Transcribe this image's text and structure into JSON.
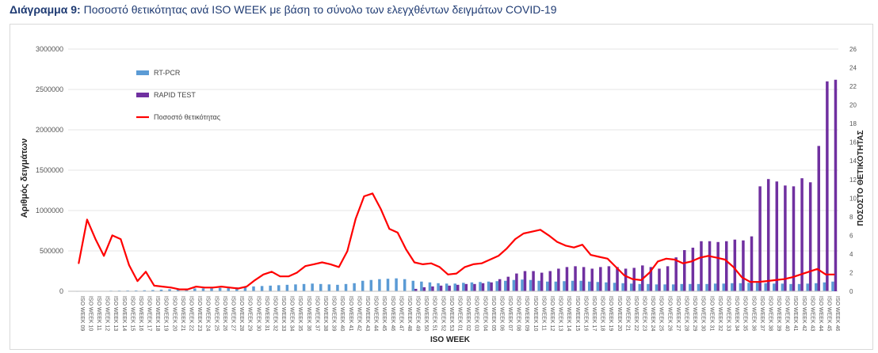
{
  "caption": {
    "label": "Διάγραμμα 9",
    "text": "Ποσοστό θετικότητας ανά ISO WEEK με βάση το σύνολο των ελεγχθέντων δειγμάτων COVID-19"
  },
  "chart_data": {
    "type": "bar",
    "xlabel": "ISO WEEK",
    "ylabel": "Αριθμός δειγμάτων",
    "y2label": "ΠΟΣΟΣΤΟ ΘΕΤΙΚΟΤΗΤΑΣ",
    "ylim": [
      0,
      3000000
    ],
    "y2lim": [
      0,
      26
    ],
    "yticks": [
      "0",
      "500000",
      "1000000",
      "1500000",
      "2000000",
      "2500000",
      "3000000"
    ],
    "y2ticks": [
      "0",
      "2",
      "4",
      "6",
      "8",
      "10",
      "12",
      "14",
      "16",
      "18",
      "20",
      "22",
      "24",
      "26"
    ],
    "legend_position": "top-left",
    "categories": [
      "ISO WEEK 09",
      "ISO WEEK 10",
      "ISO WEEK 11",
      "ISO WEEK 12",
      "ISO WEEK 13",
      "ISO WEEK 14",
      "ISO WEEK 15",
      "ISO WEEK 16",
      "ISO WEEK 17",
      "ISO WEEK 18",
      "ISO WEEK 19",
      "ISO WEEK 20",
      "ISO WEEK 21",
      "ISO WEEK 22",
      "ISO WEEK 23",
      "ISO WEEK 24",
      "ISO WEEK 25",
      "ISO WEEK 26",
      "ISO WEEK 27",
      "ISO WEEK 28",
      "ISO WEEK 29",
      "ISO WEEK 30",
      "ISO WEEK 31",
      "ISO WEEK 32",
      "ISO WEEK 33",
      "ISO WEEK 34",
      "ISO WEEK 35",
      "ISO WEEK 36",
      "ISO WEEK 37",
      "ISO WEEK 38",
      "ISO WEEK 39",
      "ISO WEEK 40",
      "ISO WEEK 41",
      "ISO WEEK 42",
      "ISO WEEK 43",
      "ISO WEEK 44",
      "ISO WEEK 45",
      "ISO WEEK 46",
      "ISO WEEK 47",
      "ISO WEEK 48",
      "ISO WEEK 49",
      "ISO WEEK 50",
      "ISO WEEK 51",
      "ISO WEEK 52",
      "ISO WEEK 53",
      "ISO WEEK 01",
      "ISO WEEK 02",
      "ISO WEEK 03",
      "ISO WEEK 04",
      "ISO WEEK 05",
      "ISO WEEK 06",
      "ISO WEEK 07",
      "ISO WEEK 08",
      "ISO WEEK 09",
      "ISO WEEK 10",
      "ISO WEEK 11",
      "ISO WEEK 12",
      "ISO WEEK 13",
      "ISO WEEK 14",
      "ISO WEEK 15",
      "ISO WEEK 16",
      "ISO WEEK 17",
      "ISO WEEK 18",
      "ISO WEEK 19",
      "ISO WEEK 20",
      "ISO WEEK 21",
      "ISO WEEK 22",
      "ISO WEEK 23",
      "ISO WEEK 24",
      "ISO WEEK 25",
      "ISO WEEK 26",
      "ISO WEEK 27",
      "ISO WEEK 28",
      "ISO WEEK 29",
      "ISO WEEK 30",
      "ISO WEEK 31",
      "ISO WEEK 32",
      "ISO WEEK 33",
      "ISO WEEK 34",
      "ISO WEEK 35",
      "ISO WEEK 36",
      "ISO WEEK 37",
      "ISO WEEK 38",
      "ISO WEEK 39",
      "ISO WEEK 40",
      "ISO WEEK 41",
      "ISO WEEK 42",
      "ISO WEEK 43",
      "ISO WEEK 44",
      "ISO WEEK 45",
      "ISO WEEK 46"
    ],
    "series": [
      {
        "name": "RT-PCR",
        "kind": "bar",
        "color": "#5b9bd5",
        "values": [
          500,
          1500,
          3000,
          5000,
          7000,
          8000,
          9000,
          10000,
          12000,
          15000,
          20000,
          25000,
          28000,
          30000,
          35000,
          37000,
          38000,
          42000,
          45000,
          48000,
          52000,
          60000,
          65000,
          70000,
          75000,
          80000,
          85000,
          90000,
          95000,
          90000,
          85000,
          80000,
          90000,
          100000,
          130000,
          140000,
          150000,
          155000,
          160000,
          150000,
          130000,
          120000,
          110000,
          100000,
          95000,
          95000,
          105000,
          110000,
          115000,
          120000,
          125000,
          130000,
          140000,
          145000,
          140000,
          130000,
          120000,
          120000,
          125000,
          130000,
          130000,
          120000,
          115000,
          110000,
          105000,
          100000,
          95000,
          90000,
          90000,
          85000,
          85000,
          85000,
          90000,
          90000,
          90000,
          90000,
          95000,
          95000,
          100000,
          100000,
          105000,
          105000,
          100000,
          95000,
          95000,
          90000,
          90000,
          95000,
          100000,
          110000,
          120000
        ]
      },
      {
        "name": "RAPID TEST",
        "kind": "bar",
        "color": "#7030a0",
        "values": [
          0,
          0,
          0,
          0,
          0,
          0,
          0,
          0,
          0,
          0,
          0,
          0,
          0,
          0,
          0,
          0,
          0,
          0,
          0,
          0,
          0,
          0,
          0,
          0,
          0,
          0,
          0,
          0,
          0,
          0,
          0,
          0,
          0,
          0,
          0,
          0,
          0,
          0,
          0,
          0,
          30000,
          50000,
          60000,
          70000,
          70000,
          80000,
          90000,
          90000,
          100000,
          110000,
          150000,
          180000,
          220000,
          250000,
          250000,
          230000,
          250000,
          280000,
          300000,
          310000,
          300000,
          280000,
          300000,
          310000,
          300000,
          280000,
          290000,
          320000,
          300000,
          280000,
          310000,
          420000,
          510000,
          540000,
          620000,
          620000,
          610000,
          620000,
          640000,
          630000,
          680000,
          1300000,
          1390000,
          1360000,
          1310000,
          1300000,
          1400000,
          1350000,
          1800000,
          2600000,
          2620000
        ]
      },
      {
        "name": "Ποσοστό θετικότητας",
        "kind": "line",
        "axis": "right",
        "color": "#ff0000",
        "values": [
          3.0,
          7.7,
          5.6,
          3.8,
          6.0,
          5.6,
          2.8,
          1.1,
          2.1,
          0.6,
          0.5,
          0.4,
          0.2,
          0.2,
          0.5,
          0.4,
          0.4,
          0.5,
          0.4,
          0.3,
          0.5,
          1.2,
          1.8,
          2.1,
          1.6,
          1.6,
          2.0,
          2.7,
          2.9,
          3.1,
          2.9,
          2.6,
          4.3,
          7.8,
          10.2,
          10.5,
          8.8,
          6.7,
          6.3,
          4.5,
          3.1,
          2.9,
          3.0,
          2.6,
          1.8,
          1.9,
          2.6,
          2.9,
          3.0,
          3.4,
          3.8,
          4.6,
          5.6,
          6.2,
          6.4,
          6.6,
          6.0,
          5.3,
          4.9,
          4.7,
          5.0,
          3.9,
          3.7,
          3.5,
          2.6,
          1.7,
          1.3,
          1.2,
          2.0,
          3.2,
          3.5,
          3.4,
          3.0,
          3.2,
          3.6,
          3.8,
          3.6,
          3.4,
          2.6,
          1.5,
          1.0,
          1.0,
          1.1,
          1.2,
          1.3,
          1.5,
          1.8,
          2.1,
          2.4,
          1.8,
          1.8
        ]
      }
    ]
  }
}
